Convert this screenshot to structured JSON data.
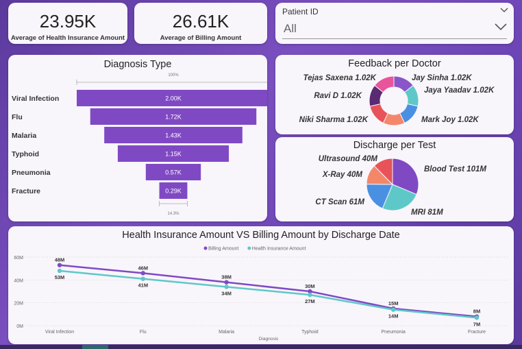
{
  "kpis": {
    "health": {
      "value": "23.95K",
      "label": "Average of Health Insurance Amount"
    },
    "billing": {
      "value": "26.61K",
      "label": "Average of Billing Amount"
    }
  },
  "slicer": {
    "label": "Patient ID",
    "value": "All"
  },
  "colors": {
    "purple": "#8049c4",
    "teal": "#5ec8c8",
    "card": "#f8f5fb"
  },
  "icons": {
    "slicer_collapse": "chevron-down-icon",
    "dropdown": "chevron-down-icon"
  },
  "chart_data": [
    {
      "type": "funnel",
      "title": "Diagnosis Type",
      "top_label": "100%",
      "bottom_label": "14.3%",
      "categories": [
        "Viral Infection",
        "Flu",
        "Malaria",
        "Typhoid",
        "Pneumonia",
        "Fracture"
      ],
      "values": [
        2.0,
        1.72,
        1.43,
        1.15,
        0.57,
        0.29
      ],
      "value_labels": [
        "2.00K",
        "1.72K",
        "1.43K",
        "1.15K",
        "0.57K",
        "0.29K"
      ],
      "color": "#8049c4"
    },
    {
      "type": "donut",
      "title": "Feedback per Doctor",
      "slices": [
        {
          "name": "Jay Sinha",
          "label": "Jay Sinha 1.02K",
          "value": 1.02,
          "color": "#8a55c8"
        },
        {
          "name": "Jaya Yaadav",
          "label": "Jaya Yaadav 1.02K",
          "value": 1.02,
          "color": "#5ec8c8"
        },
        {
          "name": "Mark Joy",
          "label": "Mark Joy 1.02K",
          "value": 1.02,
          "color": "#4a90e2"
        },
        {
          "name": "Niki Sharma",
          "label": "Niki Sharma 1.02K",
          "value": 1.02,
          "color": "#f4876a"
        },
        {
          "name": "Ravi D",
          "label": "Ravi D 1.02K",
          "value": 1.02,
          "color": "#e8535a"
        },
        {
          "name": "Tejas Saxena",
          "label": "Tejas Saxena 1.02K",
          "value": 1.02,
          "color": "#5a2a72"
        },
        {
          "name": "Other",
          "label": "",
          "value": 1.02,
          "color": "#e8559a"
        }
      ]
    },
    {
      "type": "pie",
      "title": "Discharge per Test",
      "slices": [
        {
          "name": "Blood Test",
          "label": "Blood Test 101M",
          "value": 101,
          "color": "#8049c4"
        },
        {
          "name": "MRI",
          "label": "MRI 81M",
          "value": 81,
          "color": "#5ec8c8"
        },
        {
          "name": "CT Scan",
          "label": "CT Scan 61M",
          "value": 61,
          "color": "#4a90e2"
        },
        {
          "name": "X-Ray",
          "label": "X-Ray 40M",
          "value": 40,
          "color": "#f4876a"
        },
        {
          "name": "Ultrasound",
          "label": "Ultrasound 40M",
          "value": 40,
          "color": "#e8535a"
        }
      ]
    },
    {
      "type": "line",
      "title": "Health Insurance Amount VS Billing Amount by Discharge Date",
      "xlabel": "Diagnosis",
      "ylabel": "",
      "categories": [
        "Viral Infection",
        "Flu",
        "Malaria",
        "Typhoid",
        "Pneumonia",
        "Fracture"
      ],
      "yticks": [
        "0M",
        "20M",
        "40M",
        "60M"
      ],
      "ylim": [
        0,
        60
      ],
      "grid": true,
      "legend": "top-center",
      "series": [
        {
          "name": "Billing Amount",
          "color": "#8049c4",
          "values": [
            53,
            46,
            38,
            30,
            15,
            8
          ],
          "labels": [
            "53M",
            "46M",
            "38M",
            "30M",
            "15M",
            "8M"
          ]
        },
        {
          "name": "Health Insurance Amount",
          "color": "#5ec8c8",
          "values": [
            48,
            41,
            34,
            27,
            14,
            7
          ],
          "labels": [
            "48M",
            "41M",
            "34M",
            "27M",
            "14M",
            "7M"
          ]
        }
      ]
    }
  ]
}
